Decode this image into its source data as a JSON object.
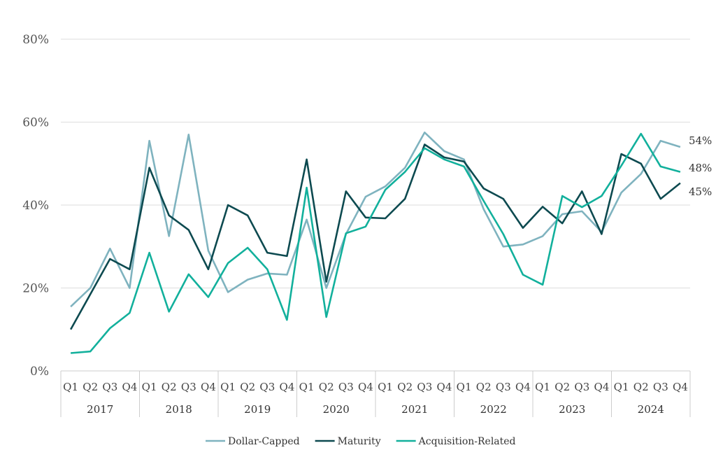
{
  "chart_data": {
    "type": "line",
    "title": "",
    "xlabel": "",
    "ylabel": "",
    "ylim": [
      0,
      80
    ],
    "yticks": [
      0,
      20,
      40,
      60,
      80
    ],
    "ytick_labels": [
      "0%",
      "20%",
      "40%",
      "60%",
      "80%"
    ],
    "grid": true,
    "legend_position": "bottom",
    "categories": [
      "Q1",
      "Q2",
      "Q3",
      "Q4",
      "Q1",
      "Q2",
      "Q3",
      "Q4",
      "Q1",
      "Q2",
      "Q3",
      "Q4",
      "Q1",
      "Q2",
      "Q3",
      "Q4",
      "Q1",
      "Q2",
      "Q3",
      "Q4",
      "Q1",
      "Q2",
      "Q3",
      "Q4",
      "Q1",
      "Q2",
      "Q3",
      "Q4",
      "Q1",
      "Q2",
      "Q3",
      "Q4"
    ],
    "groups": [
      "2017",
      "2018",
      "2019",
      "2020",
      "2021",
      "2022",
      "2023",
      "2024"
    ],
    "series": [
      {
        "name": "Dollar-Capped",
        "color": "#7fb3bf",
        "values": [
          15.5,
          20,
          29.5,
          20,
          55.5,
          32.5,
          57,
          29,
          19,
          22,
          23.5,
          23.2,
          36.5,
          20,
          33,
          42,
          44.5,
          49,
          57.5,
          53,
          51,
          39,
          30,
          30.5,
          32.5,
          37.8,
          38.5,
          33.5,
          43,
          47.5,
          55.5,
          54
        ],
        "end_label": "54%"
      },
      {
        "name": "Maturity",
        "color": "#0d4a50",
        "values": [
          10,
          18.5,
          27,
          24.5,
          49,
          37.5,
          34,
          24.5,
          40,
          37.5,
          28.5,
          27.7,
          51,
          21.5,
          43.3,
          37,
          36.8,
          41.5,
          54.6,
          51.5,
          50.5,
          44,
          41.5,
          34.5,
          39.6,
          35.6,
          43.3,
          33,
          52.3,
          50,
          41.5,
          45.3
        ],
        "end_label": "45%"
      },
      {
        "name": "Acquisition-Related",
        "color": "#12b09c",
        "values": [
          4.3,
          4.7,
          10.3,
          14,
          28.5,
          14.3,
          23.3,
          17.8,
          26,
          29.7,
          24.5,
          12.3,
          44.2,
          13,
          33.2,
          34.8,
          43.7,
          48,
          53.7,
          51,
          49.3,
          41,
          33,
          23.2,
          20.8,
          42.2,
          39.5,
          42.2,
          49.5,
          57.2,
          49.3,
          48
        ],
        "end_label": "48%"
      }
    ]
  }
}
